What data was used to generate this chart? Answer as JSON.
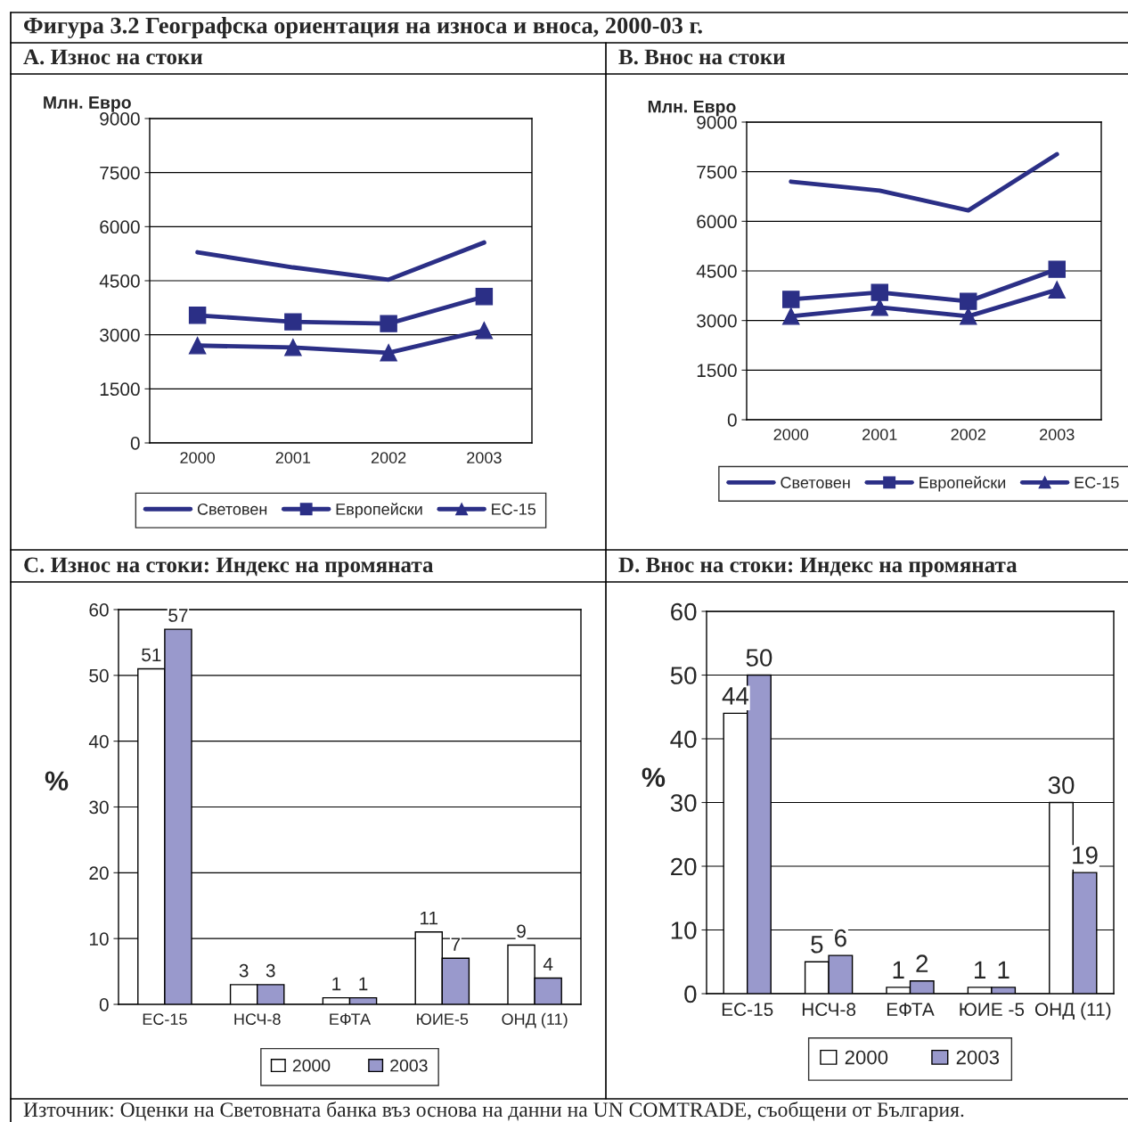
{
  "chart_data": [
    {
      "type": "line",
      "title": "A. Износ на стоки",
      "ylabel": "Млн. Евро",
      "annotations": [
        "Фигура 3.2 Географска ориентация на износа и вноса, 2000-03 г."
      ],
      "categories": [
        "2000",
        "2001",
        "2002",
        "2003"
      ],
      "ylim": [
        0,
        9000
      ],
      "yticks": [
        0,
        1500,
        3000,
        4500,
        6000,
        7500,
        9000
      ],
      "grid": "y",
      "legend": "bottom",
      "series": [
        {
          "name": "Световен",
          "color": "#2b2f86",
          "marker": "none",
          "values": [
            5290,
            4870,
            4530,
            5560
          ]
        },
        {
          "name": "Европейски",
          "color": "#2b2f86",
          "marker": "square",
          "values": [
            3540,
            3360,
            3310,
            4060
          ]
        },
        {
          "name": "ЕС-15",
          "color": "#2b2f86",
          "marker": "triangle",
          "values": [
            2700,
            2650,
            2500,
            3120
          ]
        }
      ]
    },
    {
      "type": "line",
      "title": "B. Внос на стоки",
      "ylabel": "Млн. Евро",
      "categories": [
        "2000",
        "2001",
        "2002",
        "2003"
      ],
      "ylim": [
        0,
        9000
      ],
      "yticks": [
        0,
        1500,
        3000,
        4500,
        6000,
        7500,
        9000
      ],
      "grid": "y",
      "legend": "bottom",
      "series": [
        {
          "name": "Световен",
          "color": "#2b2f86",
          "marker": "none",
          "values": [
            7200,
            6930,
            6330,
            8030
          ]
        },
        {
          "name": "Европейски",
          "color": "#2b2f86",
          "marker": "square",
          "values": [
            3640,
            3850,
            3580,
            4550
          ]
        },
        {
          "name": "ЕС-15",
          "color": "#2b2f86",
          "marker": "triangle",
          "values": [
            3130,
            3400,
            3130,
            3930
          ]
        }
      ]
    },
    {
      "type": "bar",
      "title": "C. Износ на стоки: Индекс на промяната",
      "ylabel": "%",
      "categories": [
        "ЕС-15",
        "НСЧ-8",
        "ЕФТА",
        "ЮИЕ-5",
        "ОНД (11)"
      ],
      "ylim": [
        0,
        60
      ],
      "yticks": [
        0,
        10,
        20,
        30,
        40,
        50,
        60
      ],
      "grid": "y",
      "legend": "bottom",
      "data_labels": true,
      "series": [
        {
          "name": "2000",
          "color": "#ffffff",
          "values": [
            51,
            3,
            1,
            11,
            9
          ]
        },
        {
          "name": "2003",
          "color": "#9999cc",
          "values": [
            57,
            3,
            1,
            7,
            4
          ]
        }
      ]
    },
    {
      "type": "bar",
      "title": "D. Внос на стоки: Индекс на промяната",
      "ylabel": "%",
      "annotations": [
        "Източник: Оценки на Световната банка въз основа на данни на UN COMTRADE, съобщени от България."
      ],
      "categories": [
        "ЕС-15",
        "НСЧ-8",
        "ЕФТА",
        "ЮИЕ -5",
        "ОНД (11)"
      ],
      "ylim": [
        0,
        60
      ],
      "yticks": [
        0,
        10,
        20,
        30,
        40,
        50,
        60
      ],
      "grid": "y",
      "legend": "bottom",
      "data_labels": true,
      "series": [
        {
          "name": "2000",
          "color": "#ffffff",
          "values": [
            44,
            5,
            1,
            1,
            30
          ]
        },
        {
          "name": "2003",
          "color": "#9999cc",
          "values": [
            50,
            6,
            2,
            1,
            19
          ]
        }
      ]
    }
  ]
}
